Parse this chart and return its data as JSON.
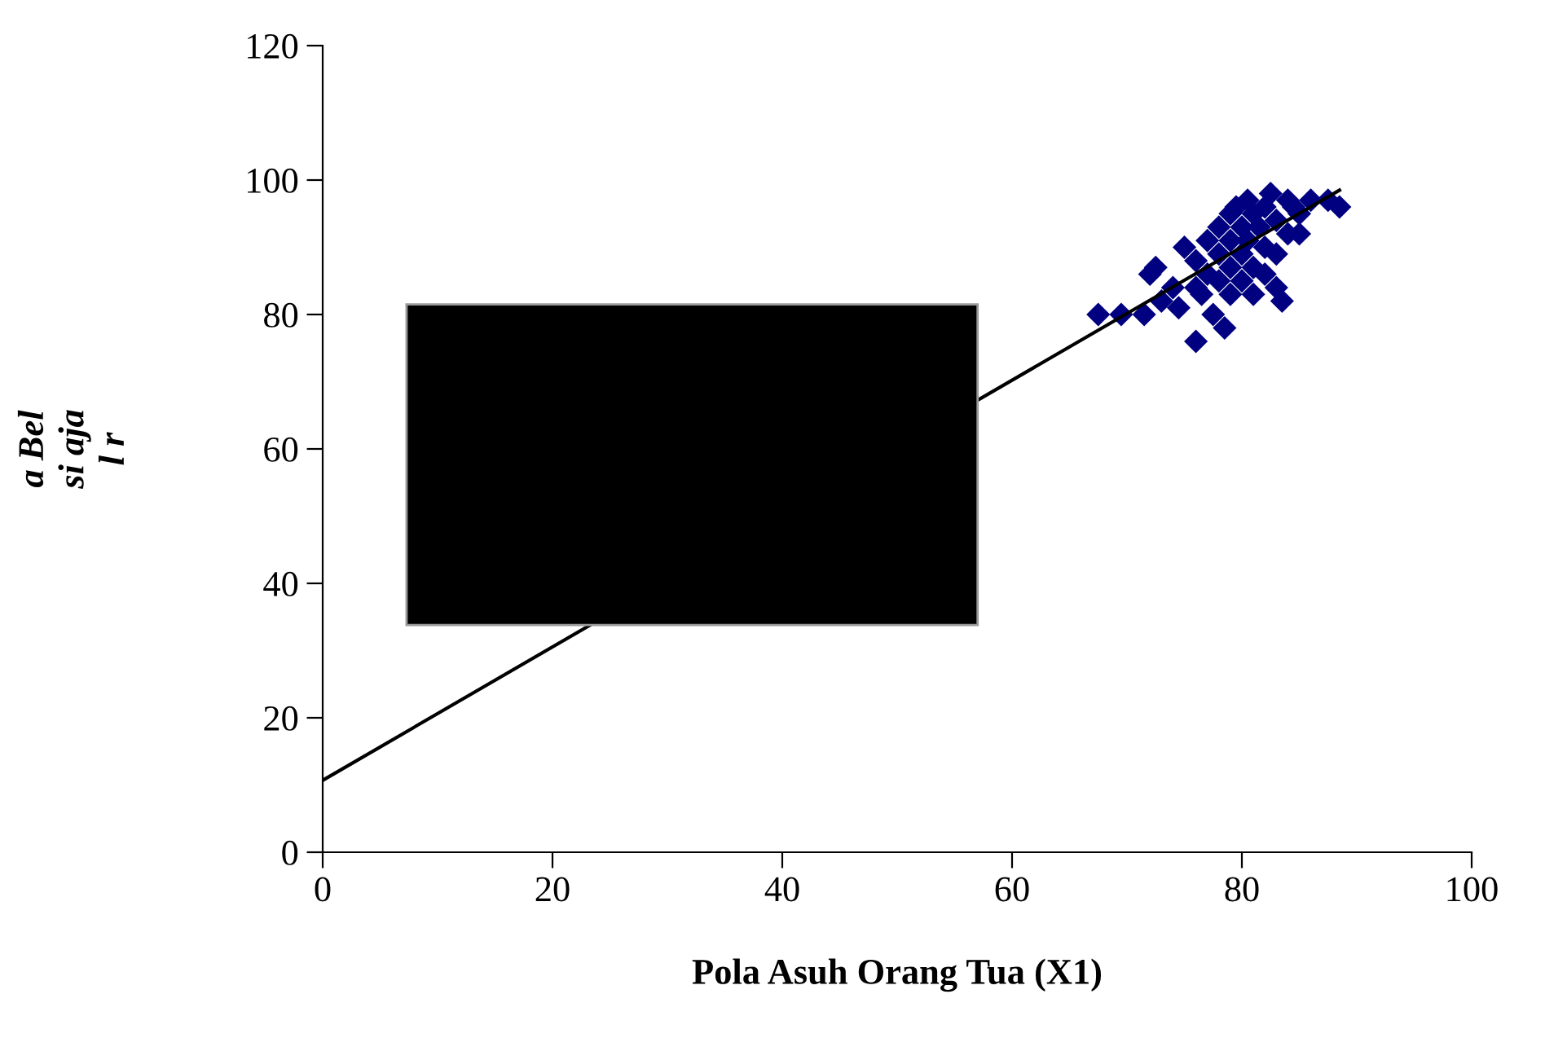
{
  "chart_data": {
    "type": "scatter",
    "xlabel": "Pola Asuh Orang Tua (X1)",
    "ylabel": "a Bel\nsi aja\nl r",
    "xlim": [
      0,
      100
    ],
    "ylim": [
      0,
      120
    ],
    "xticks": [
      0,
      20,
      40,
      60,
      80,
      100
    ],
    "yticks": [
      0,
      20,
      40,
      60,
      80,
      100,
      120
    ],
    "grid": false,
    "marker": "diamond",
    "series": [
      {
        "color": "#000080",
        "x": [
          67.5,
          69.5,
          71.5,
          72,
          72.5,
          73,
          74,
          74.5,
          75,
          76,
          76,
          76,
          76.5,
          77,
          77,
          77.5,
          78,
          78,
          78,
          78.5,
          79,
          79,
          79,
          79,
          79.5,
          80,
          80,
          80,
          80.5,
          80.5,
          81,
          81,
          81,
          81.5,
          82,
          82,
          82,
          82.5,
          83,
          83,
          83,
          83.5,
          84,
          84,
          84.5,
          85,
          85,
          86,
          87.5,
          88.5
        ],
        "values": [
          80,
          80,
          80,
          86,
          87,
          82,
          84,
          81,
          90,
          76,
          88,
          84,
          83,
          86,
          91,
          80,
          93,
          89,
          85,
          78,
          95,
          91,
          87,
          83,
          96,
          93,
          89,
          85,
          97,
          91,
          95,
          87,
          83,
          93,
          96,
          90,
          86,
          98,
          94,
          89,
          84,
          82,
          97,
          92,
          96,
          95,
          92,
          97,
          97,
          96
        ]
      },
      {
        "type": "line",
        "color": "#000000",
        "x": [
          0,
          88.5
        ],
        "values": [
          10.7,
          98.5
        ],
        "marker": "none"
      }
    ]
  }
}
